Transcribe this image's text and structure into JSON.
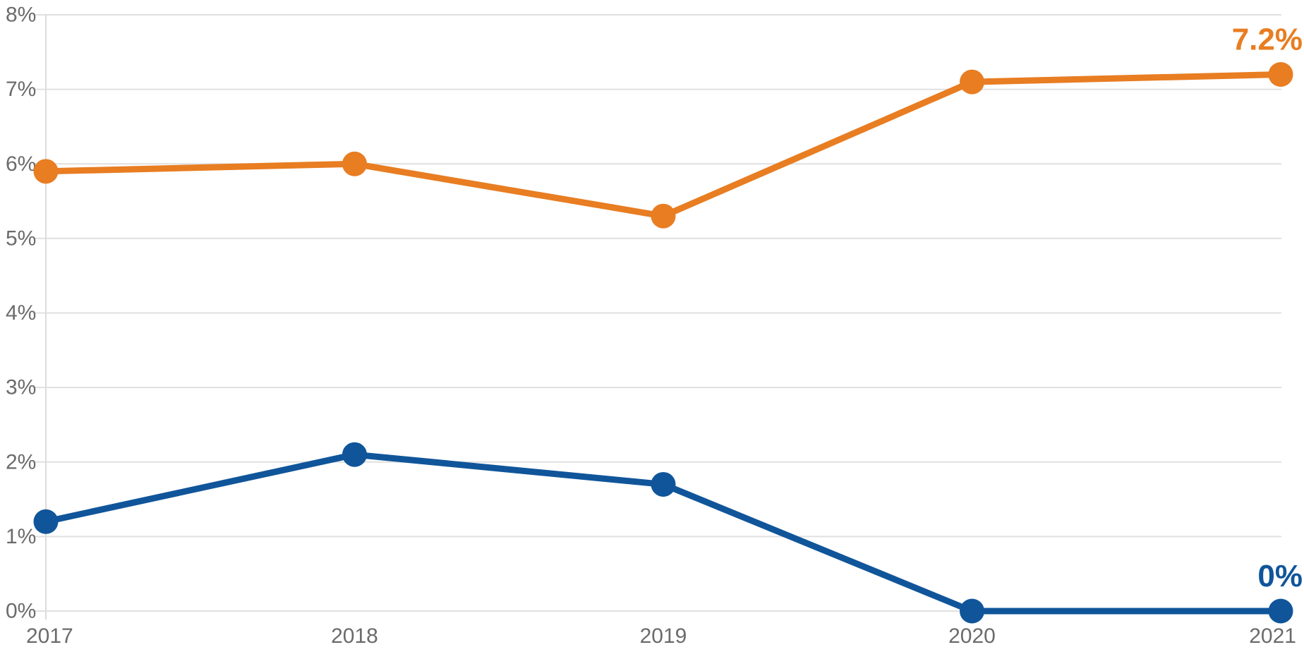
{
  "chart_data": {
    "type": "line",
    "x": [
      "2017",
      "2018",
      "2019",
      "2020",
      "2021"
    ],
    "series": [
      {
        "name": "orange-series",
        "color": "#E87D22",
        "values": [
          5.9,
          6.0,
          5.3,
          7.1,
          7.2
        ],
        "end_label": "7.2%"
      },
      {
        "name": "blue-series",
        "color": "#10559A",
        "values": [
          1.2,
          2.1,
          1.7,
          0,
          0
        ],
        "end_label": "0%"
      }
    ],
    "title": "",
    "xlabel": "",
    "ylabel": "",
    "ylim": [
      0,
      8
    ],
    "yticks": [
      0,
      1,
      2,
      3,
      4,
      5,
      6,
      7,
      8
    ],
    "ytick_labels": [
      "0%",
      "1%",
      "2%",
      "3%",
      "4%",
      "5%",
      "6%",
      "7%",
      "8%"
    ],
    "xtick_labels": [
      "2017",
      "2018",
      "2019",
      "2020",
      "2021"
    ],
    "grid": true,
    "legend": "none",
    "colors": {
      "grid": "#E0E0E0",
      "axis": "#DCDCDC",
      "tick_text": "#6B6B6B",
      "background": "#FFFFFF"
    }
  }
}
